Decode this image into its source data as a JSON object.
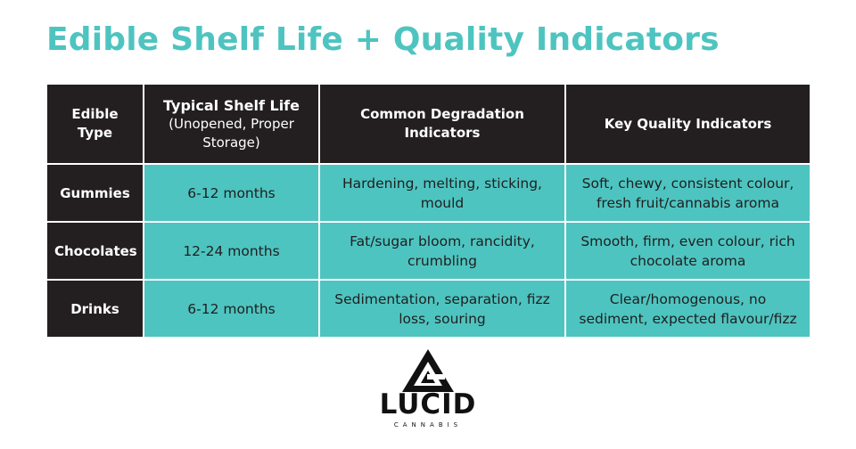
{
  "title": "Edible Shelf Life + Quality Indicators",
  "colors": {
    "accent": "#4ec4c0",
    "header_bg": "#231f20",
    "text_dark": "#1f1f1f"
  },
  "table": {
    "headers": {
      "type": "Edible Type",
      "shelf_main": "Typical Shelf Life",
      "shelf_sub": "(Unopened, Proper Storage)",
      "degradation": "Common Degradation Indicators",
      "quality": "Key Quality Indicators"
    },
    "rows": [
      {
        "type": "Gummies",
        "shelf_life": "6-12 months",
        "degradation": "Hardening, melting, sticking, mould",
        "quality": "Soft, chewy, consistent colour, fresh fruit/cannabis aroma"
      },
      {
        "type": "Chocolates",
        "shelf_life": "12-24 months",
        "degradation": "Fat/sugar bloom, rancidity, crumbling",
        "quality": "Smooth, firm, even colour, rich chocolate aroma"
      },
      {
        "type": "Drinks",
        "shelf_life": "6-12 months",
        "degradation": "Sedimentation, separation, fizz loss, souring",
        "quality": "Clear/homogenous, no sediment, expected flavour/fizz"
      }
    ]
  },
  "logo": {
    "word": "LUCID",
    "sub": "CANNABIS",
    "icon": "lucid-triangle-logo-icon"
  }
}
